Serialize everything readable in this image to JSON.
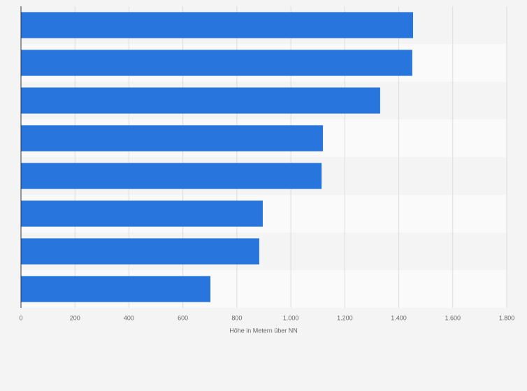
{
  "chart_data": {
    "type": "barh",
    "categories": [
      null,
      null,
      null,
      null,
      null,
      null,
      null,
      null
    ],
    "values": [
      1453,
      1450,
      1331,
      1119,
      1114,
      896,
      883,
      702
    ],
    "color": "#2876dd",
    "x_label": "Höhe in Metern über NN",
    "xlim": [
      0,
      1800
    ],
    "xticks": [
      0,
      200,
      400,
      600,
      800,
      {
        "value": 1000,
        "label": "1.000"
      },
      {
        "value": 1200,
        "label": "1.200"
      },
      {
        "value": 1400,
        "label": "1.400"
      },
      {
        "value": 1600,
        "label": "1.600"
      },
      {
        "value": 1800,
        "label": "1.800"
      }
    ],
    "grid": true
  }
}
